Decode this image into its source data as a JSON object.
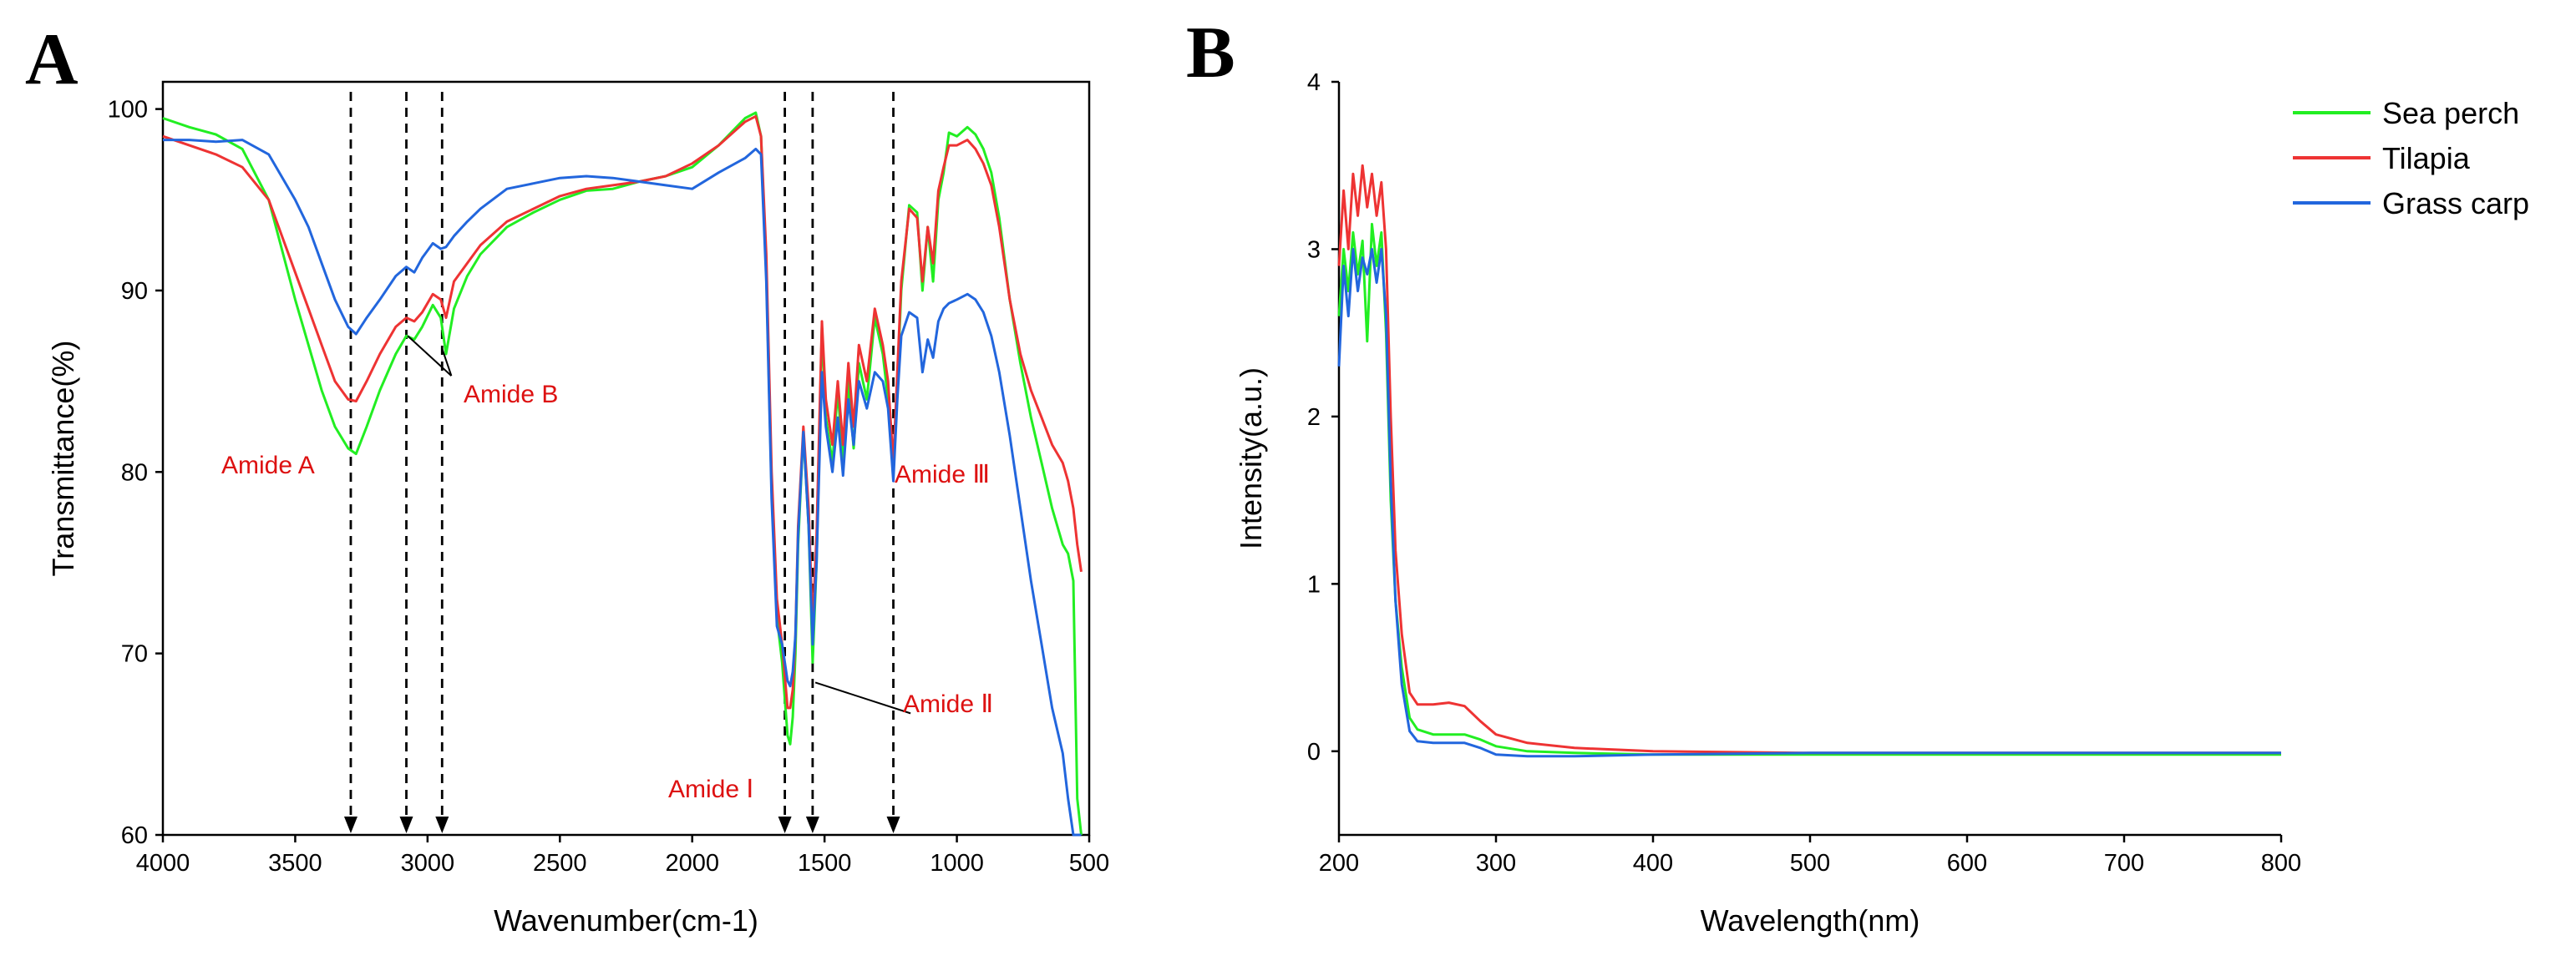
{
  "chart_data": [
    {
      "panel": "A",
      "type": "line",
      "title": "",
      "xlabel": "Wavenumber(cm-1)",
      "ylabel": "Transmittance(%)",
      "xlim": [
        4000,
        500
      ],
      "ylim": [
        60,
        101.5
      ],
      "x_reversed": true,
      "xticks": [
        4000,
        3500,
        3000,
        2500,
        2000,
        1500,
        1000,
        500
      ],
      "yticks": [
        60,
        70,
        80,
        90,
        100
      ],
      "grid": false,
      "series": [
        {
          "name": "",
          "color": "#22ee22",
          "x": [
            4000,
            3900,
            3800,
            3700,
            3600,
            3500,
            3450,
            3400,
            3350,
            3300,
            3270,
            3230,
            3180,
            3120,
            3080,
            3050,
            3020,
            2980,
            2950,
            2930,
            2900,
            2850,
            2800,
            2700,
            2600,
            2500,
            2400,
            2300,
            2200,
            2100,
            2000,
            1900,
            1800,
            1760,
            1740,
            1720,
            1700,
            1680,
            1660,
            1640,
            1630,
            1620,
            1610,
            1600,
            1580,
            1560,
            1545,
            1530,
            1510,
            1495,
            1470,
            1450,
            1430,
            1410,
            1390,
            1370,
            1340,
            1310,
            1280,
            1260,
            1240,
            1225,
            1210,
            1180,
            1150,
            1130,
            1110,
            1090,
            1070,
            1050,
            1030,
            1000,
            960,
            930,
            900,
            870,
            840,
            800,
            760,
            720,
            680,
            640,
            600,
            580,
            560,
            545,
            530
          ],
          "y": [
            99.5,
            99,
            98.6,
            97.8,
            95,
            89.5,
            87,
            84.5,
            82.5,
            81.3,
            81,
            82.5,
            84.5,
            86.5,
            87.5,
            87.3,
            88,
            89.2,
            88.5,
            86.5,
            89,
            90.8,
            92,
            93.5,
            94.3,
            95,
            95.5,
            95.6,
            96,
            96.3,
            96.8,
            98,
            99.5,
            99.8,
            98.5,
            91,
            79,
            72,
            69.5,
            65.5,
            65,
            66.5,
            70,
            76,
            82.2,
            77,
            69.5,
            75,
            88,
            83,
            80.5,
            84.5,
            80.5,
            85,
            81.3,
            86,
            84,
            88.5,
            86.5,
            84,
            80,
            85,
            90,
            94.7,
            94.3,
            90,
            93.5,
            90.5,
            95,
            96.5,
            98.7,
            98.5,
            99,
            98.6,
            97.8,
            96.5,
            94,
            89.5,
            86,
            83,
            80.5,
            78,
            76,
            75.5,
            74,
            62,
            60
          ]
        },
        {
          "name": "",
          "color": "#ee3333",
          "x": [
            4000,
            3900,
            3800,
            3700,
            3600,
            3500,
            3450,
            3400,
            3350,
            3300,
            3270,
            3230,
            3180,
            3120,
            3080,
            3050,
            3020,
            2980,
            2950,
            2930,
            2900,
            2850,
            2800,
            2700,
            2600,
            2500,
            2400,
            2300,
            2200,
            2100,
            2000,
            1900,
            1800,
            1760,
            1740,
            1720,
            1700,
            1680,
            1660,
            1640,
            1630,
            1620,
            1610,
            1600,
            1580,
            1560,
            1545,
            1530,
            1510,
            1495,
            1470,
            1450,
            1430,
            1410,
            1390,
            1370,
            1340,
            1310,
            1280,
            1260,
            1240,
            1225,
            1210,
            1180,
            1150,
            1130,
            1110,
            1090,
            1070,
            1050,
            1030,
            1000,
            960,
            930,
            900,
            870,
            840,
            800,
            760,
            720,
            680,
            640,
            600,
            580,
            560,
            545,
            530
          ],
          "y": [
            98.5,
            98,
            97.5,
            96.8,
            95,
            91,
            89,
            87,
            85,
            84,
            83.9,
            85,
            86.5,
            88,
            88.5,
            88.3,
            88.8,
            89.8,
            89.5,
            88.5,
            90.5,
            91.5,
            92.5,
            93.8,
            94.5,
            95.2,
            95.6,
            95.8,
            96,
            96.3,
            97,
            98,
            99.3,
            99.6,
            98.5,
            92,
            80,
            73,
            70.5,
            67,
            67,
            68,
            71,
            77,
            82.5,
            78,
            71.5,
            76.5,
            88.3,
            84,
            81.5,
            85,
            81.5,
            86,
            82.5,
            87,
            85,
            89,
            87,
            85,
            80.5,
            85.5,
            90.5,
            94.5,
            94,
            90.5,
            93.5,
            91.5,
            95.5,
            96.8,
            98,
            98,
            98.3,
            97.8,
            97,
            95.8,
            93.5,
            89.5,
            86.5,
            84.5,
            83,
            81.5,
            80.5,
            79.5,
            78,
            76,
            74.5
          ]
        },
        {
          "name": "",
          "color": "#2266dd",
          "x": [
            4000,
            3900,
            3800,
            3700,
            3600,
            3500,
            3450,
            3400,
            3350,
            3300,
            3270,
            3230,
            3180,
            3120,
            3080,
            3050,
            3020,
            2980,
            2950,
            2930,
            2900,
            2850,
            2800,
            2700,
            2600,
            2500,
            2400,
            2300,
            2200,
            2100,
            2000,
            1900,
            1800,
            1760,
            1740,
            1720,
            1700,
            1680,
            1660,
            1640,
            1630,
            1620,
            1610,
            1600,
            1580,
            1560,
            1545,
            1530,
            1510,
            1495,
            1470,
            1450,
            1430,
            1410,
            1390,
            1370,
            1340,
            1310,
            1280,
            1260,
            1240,
            1225,
            1210,
            1180,
            1150,
            1130,
            1110,
            1090,
            1070,
            1050,
            1030,
            1000,
            960,
            930,
            900,
            870,
            840,
            800,
            760,
            720,
            680,
            640,
            600,
            580,
            560,
            545,
            530
          ],
          "y": [
            98.3,
            98.3,
            98.2,
            98.3,
            97.5,
            95,
            93.5,
            91.5,
            89.5,
            88,
            87.6,
            88.5,
            89.5,
            90.8,
            91.3,
            91,
            91.8,
            92.6,
            92.3,
            92.4,
            93,
            93.8,
            94.5,
            95.6,
            95.9,
            96.2,
            96.3,
            96.2,
            96,
            95.8,
            95.6,
            96.5,
            97.3,
            97.8,
            97.5,
            90.5,
            78.5,
            71.5,
            70.5,
            68.5,
            68.2,
            69,
            71,
            76.5,
            82.2,
            77,
            70.5,
            75,
            85.5,
            82.5,
            80,
            83,
            79.8,
            84,
            81.5,
            85,
            83.5,
            85.5,
            85,
            83.5,
            79.5,
            84,
            87.5,
            88.8,
            88.5,
            85.5,
            87.3,
            86.3,
            88.3,
            89,
            89.3,
            89.5,
            89.8,
            89.5,
            88.8,
            87.5,
            85.5,
            82,
            78,
            74,
            70.5,
            67,
            64.5,
            62,
            60,
            60,
            60
          ]
        }
      ],
      "markers": [
        {
          "x": 3290
        },
        {
          "x": 3080
        },
        {
          "x": 2945
        },
        {
          "x": 1650
        },
        {
          "x": 1545
        },
        {
          "x": 1240
        }
      ],
      "annotations": [
        {
          "text": "Amide A",
          "color": "#dd1111"
        },
        {
          "text": "Amide B",
          "color": "#dd1111"
        },
        {
          "text": "Amide Ⅰ",
          "color": "#dd1111"
        },
        {
          "text": "Amide Ⅱ",
          "color": "#dd1111"
        },
        {
          "text": "Amide Ⅲ",
          "color": "#dd1111"
        }
      ]
    },
    {
      "panel": "B",
      "type": "line",
      "title": "",
      "xlabel": "Wavelength(nm)",
      "ylabel": "Intensity(a.u.)",
      "xlim": [
        200,
        800
      ],
      "ylim": [
        -0.5,
        4
      ],
      "xticks": [
        200,
        300,
        400,
        500,
        600,
        700,
        800
      ],
      "yticks": [
        0,
        1,
        2,
        3,
        4
      ],
      "grid": false,
      "legend": {
        "position": "top-right"
      },
      "series": [
        {
          "name": "Sea perch",
          "color": "#22ee22",
          "x": [
            200,
            203,
            206,
            209,
            212,
            215,
            218,
            221,
            224,
            227,
            230,
            233,
            236,
            240,
            245,
            250,
            260,
            270,
            280,
            290,
            300,
            320,
            350,
            400,
            500,
            600,
            700,
            800
          ],
          "y": [
            2.6,
            3.0,
            2.75,
            3.1,
            2.85,
            3.05,
            2.45,
            3.15,
            2.9,
            3.1,
            2.5,
            1.5,
            0.9,
            0.5,
            0.2,
            0.13,
            0.1,
            0.1,
            0.1,
            0.07,
            0.03,
            0.0,
            -0.01,
            -0.02,
            -0.02,
            -0.02,
            -0.02,
            -0.02
          ]
        },
        {
          "name": "Tilapia",
          "color": "#ee3333",
          "x": [
            200,
            203,
            206,
            209,
            212,
            215,
            218,
            221,
            224,
            227,
            230,
            233,
            236,
            240,
            245,
            250,
            260,
            270,
            280,
            290,
            300,
            320,
            350,
            400,
            500,
            600,
            700,
            800
          ],
          "y": [
            2.9,
            3.35,
            3.0,
            3.45,
            3.2,
            3.5,
            3.25,
            3.45,
            3.2,
            3.4,
            3.0,
            2.0,
            1.2,
            0.7,
            0.35,
            0.28,
            0.28,
            0.29,
            0.27,
            0.18,
            0.1,
            0.05,
            0.02,
            0.0,
            -0.01,
            -0.01,
            -0.01,
            -0.01
          ]
        },
        {
          "name": "Grass carp",
          "color": "#2266dd",
          "x": [
            200,
            203,
            206,
            209,
            212,
            215,
            218,
            221,
            224,
            227,
            230,
            233,
            236,
            240,
            245,
            250,
            260,
            270,
            280,
            290,
            300,
            320,
            350,
            400,
            500,
            600,
            700,
            800
          ],
          "y": [
            2.3,
            2.9,
            2.6,
            3.0,
            2.75,
            2.95,
            2.85,
            3.0,
            2.8,
            3.0,
            2.6,
            1.6,
            0.9,
            0.4,
            0.12,
            0.06,
            0.05,
            0.05,
            0.05,
            0.02,
            -0.02,
            -0.03,
            -0.03,
            -0.02,
            -0.01,
            -0.01,
            -0.01,
            -0.01
          ]
        }
      ]
    }
  ]
}
